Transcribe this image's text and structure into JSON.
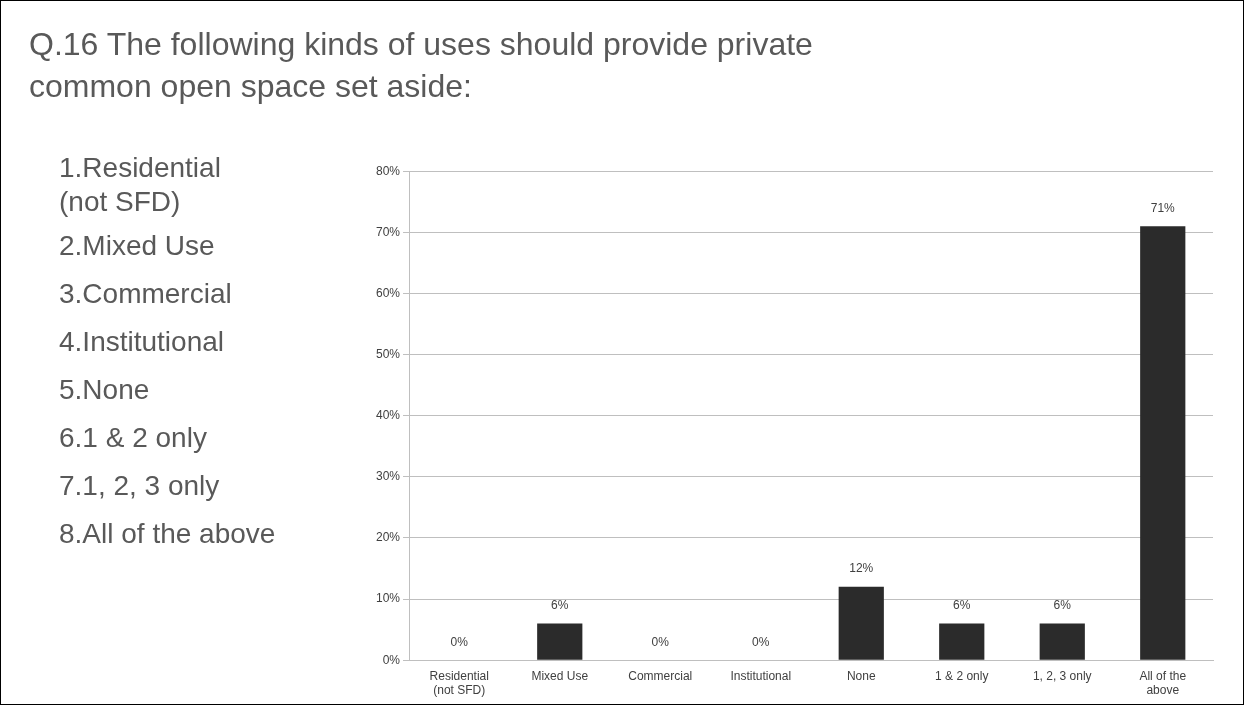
{
  "chart_data": {
    "type": "bar",
    "title": "Q.16 The following kinds of uses should provide private common open space set aside:",
    "categories": [
      "Residential (not SFD)",
      "Mixed Use",
      "Commercial",
      "Institutional",
      "None",
      "1 & 2 only",
      "1, 2, 3 only",
      "All of the above"
    ],
    "values": [
      0,
      6,
      0,
      0,
      12,
      6,
      6,
      71
    ],
    "value_labels": [
      "0%",
      "6%",
      "0%",
      "0%",
      "12%",
      "6%",
      "6%",
      "71%"
    ],
    "color": "#2b2b2b",
    "ylim": [
      0,
      80
    ],
    "yticks": [
      {
        "value": 0,
        "label": "0%"
      },
      {
        "value": 10,
        "label": "10%"
      },
      {
        "value": 20,
        "label": "20%"
      },
      {
        "value": 30,
        "label": "30%"
      },
      {
        "value": 40,
        "label": "40%"
      },
      {
        "value": 50,
        "label": "50%"
      },
      {
        "value": 60,
        "label": "60%"
      },
      {
        "value": 70,
        "label": "70%"
      },
      {
        "value": 80,
        "label": "80%"
      }
    ],
    "grid": "y",
    "annotations": [
      "1.Residential\n(not SFD)",
      "2.Mixed Use",
      "3.Commercial",
      "4.Institutional",
      "5.None",
      "6.1 & 2 only",
      "7.1, 2, 3 only",
      "8.All of the above"
    ]
  }
}
